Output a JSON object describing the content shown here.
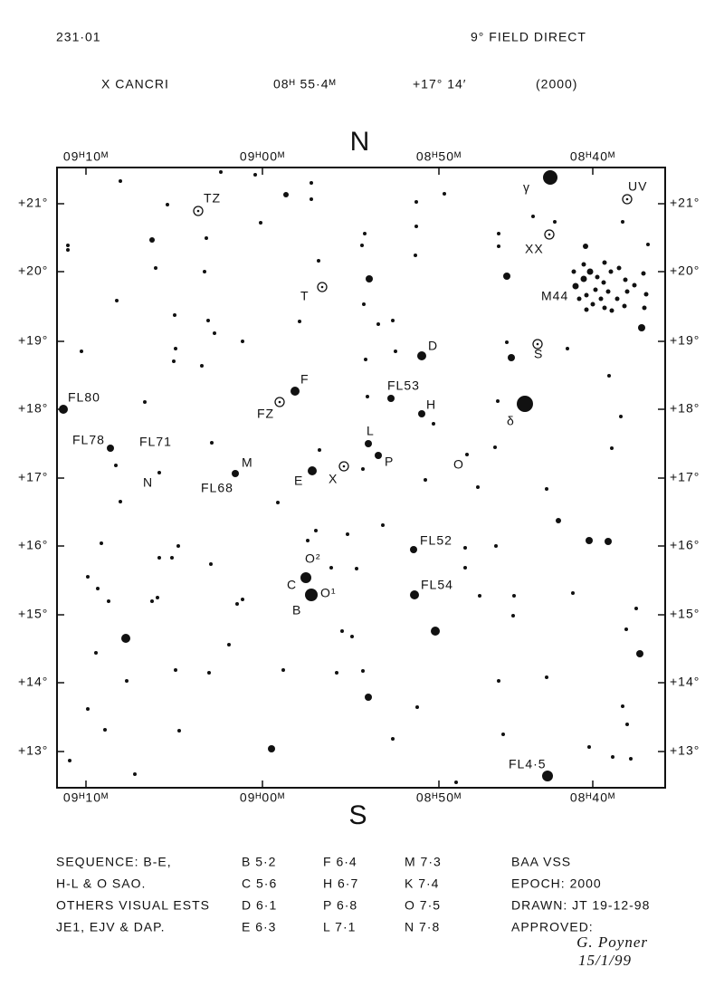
{
  "header": {
    "chart_id": "231·01",
    "field": "9° FIELD DIRECT",
    "star": "X CANCRI",
    "ra": "08ᴴ 55·4ᴹ",
    "dec": "+17° 14′",
    "epoch": "(2000)"
  },
  "chart": {
    "north": "N",
    "south": "S",
    "ra_labels": [
      "09ᴴ10ᴹ",
      "09ᴴ00ᴹ",
      "08ᴴ50ᴹ",
      "08ᴴ40ᴹ"
    ],
    "dec_labels": [
      "+21°",
      "+20°",
      "+19°",
      "+18°",
      "+17°",
      "+16°",
      "+15°",
      "+14°",
      "+13°"
    ],
    "star_labels": [
      "TZ",
      "T",
      "γ",
      "UV",
      "XX",
      "M44",
      "D",
      "S",
      "F",
      "FL53",
      "H",
      "FZ",
      "δ",
      "FL80",
      "L",
      "FL78",
      "FL71",
      "P",
      "O",
      "M",
      "E",
      "X",
      "N",
      "FL68",
      "FL52",
      "O²",
      "C",
      "FL54",
      "O¹",
      "B",
      "FL4·5"
    ]
  },
  "footer": {
    "notes": [
      "SEQUENCE: B-E,",
      "H-L & O SAO.",
      "OTHERS VISUAL ESTS",
      "JE1, EJV & DAP."
    ],
    "sequence": [
      [
        "B 5·2",
        "F 6·4",
        "M 7·3"
      ],
      [
        "C 5·6",
        "H 6·7",
        "K 7·4"
      ],
      [
        "D 6·1",
        "P 6·8",
        "O 7·5"
      ],
      [
        "E 6·3",
        "L 7·1",
        "N 7·8"
      ]
    ],
    "info": [
      "BAA VSS",
      "EPOCH: 2000",
      "DRAWN: JT 19-12-98",
      "APPROVED:"
    ],
    "signature": [
      "G. Poyner",
      "15/1/99"
    ]
  }
}
